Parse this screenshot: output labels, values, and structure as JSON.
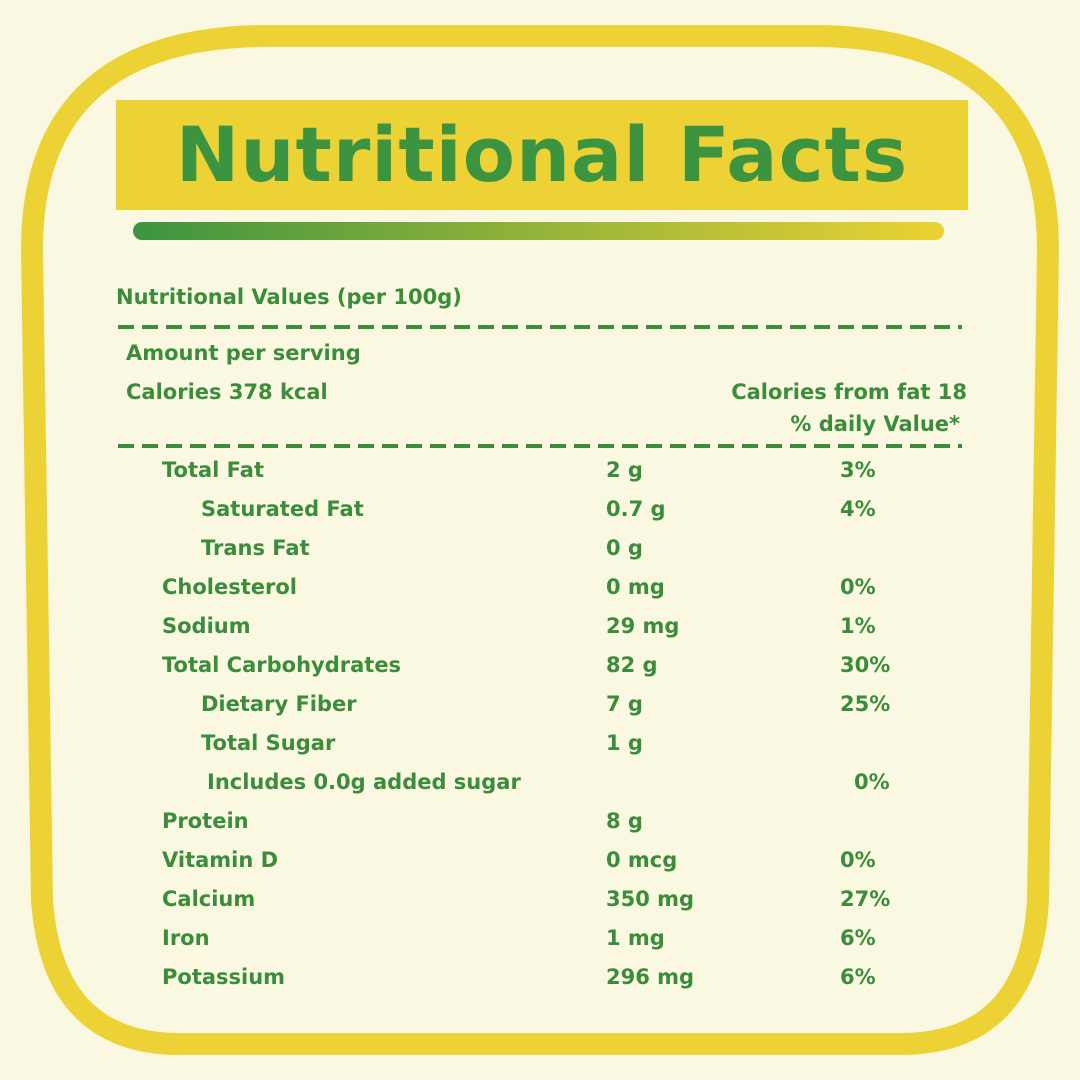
{
  "title": "Nutritional Facts",
  "subtitle": "Nutritional Values (per 100g)",
  "amount_per_serving": "Amount per serving",
  "calories": "Calories 378 kcal",
  "calories_from_fat": "Calories from fat 18",
  "daily_value_header": "% daily Value*",
  "rows": [
    {
      "name": "Total Fat",
      "amount": "2 g",
      "daily": "3%",
      "sub": [
        {
          "name": "Saturated Fat",
          "amount": "0.7 g",
          "daily": "4%"
        },
        {
          "name": "Trans Fat",
          "amount": "0 g"
        }
      ]
    },
    {
      "name": "Cholesterol",
      "amount": "0 mg",
      "daily": "0%"
    },
    {
      "name": "Sodium",
      "amount": "29 mg",
      "daily": "1%"
    },
    {
      "name": "Total Carbohydrates",
      "amount": "82 g",
      "daily": "30%",
      "sub": [
        {
          "name": "Dietary Fiber",
          "amount": "7 g",
          "daily": "25%"
        },
        {
          "name": "Total Sugar",
          "amount": "1 g",
          "sub": [
            {
              "name": "Includes 0.0g added sugar",
              "daily": "0%"
            }
          ]
        }
      ]
    },
    {
      "name": "Protein",
      "amount": "8 g"
    },
    {
      "name": "Vitamin D",
      "amount": "0 mcg",
      "daily": "0%"
    },
    {
      "name": "Calcium",
      "amount": "350 mg",
      "daily": "27%"
    },
    {
      "name": "Iron",
      "amount": "1 mg",
      "daily": "6%"
    },
    {
      "name": "Potassium",
      "amount": "296 mg",
      "daily": "6%"
    }
  ]
}
